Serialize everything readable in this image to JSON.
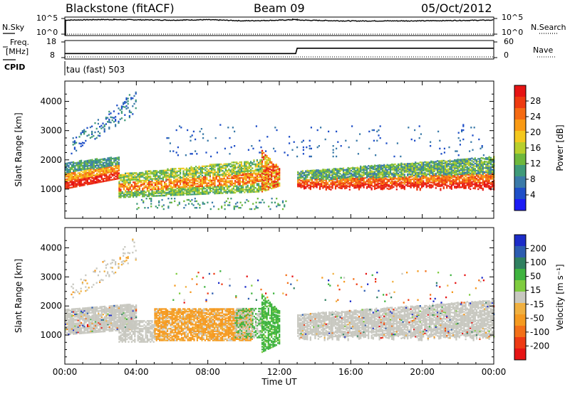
{
  "header": {
    "title": "Blackstone (fitACF)",
    "beam": "Beam 09",
    "date": "05/Oct/2012"
  },
  "left_labels": {
    "nsky": "N.Sky",
    "nsky_hi": "10^5",
    "nsky_lo": "10^0",
    "freq_line1": "Freq.",
    "freq_line2": "[MHz]",
    "freq_hi": "18",
    "freq_lo": "8",
    "cpid": "CPID",
    "cpid_value": "tau (fast) 503"
  },
  "right_labels": {
    "nsearch": "N.Search",
    "nsearch_hi": "10^5",
    "nsearch_lo": "10^0",
    "nave": "Nave",
    "nave_hi": "60",
    "nave_lo": "0"
  },
  "chart_data": [
    {
      "type": "line",
      "panel": "noise",
      "series": [
        {
          "name": "N.Sky",
          "x": [
            "00:00",
            "02:00",
            "04:00",
            "06:00",
            "08:00",
            "10:00",
            "12:00",
            "12:55",
            "13:05",
            "16:00",
            "20:00",
            "24:00"
          ],
          "values": [
            30000,
            45000,
            38000,
            30000,
            40000,
            18000,
            28000,
            45000,
            30000,
            16000,
            18000,
            30000
          ]
        },
        {
          "name": "N.Search",
          "style": "dotted",
          "x": [
            "00:00",
            "24:00"
          ],
          "values": [
            1,
            1
          ]
        }
      ],
      "yscale": "log",
      "ylim": [
        1,
        100000
      ]
    },
    {
      "type": "line",
      "panel": "frequency",
      "series": [
        {
          "name": "Freq.",
          "x": [
            "00:00",
            "12:55",
            "13:00",
            "24:00"
          ],
          "values": [
            10.6,
            10.6,
            14.0,
            14.0
          ]
        },
        {
          "name": "Nave",
          "style": "dotted",
          "x": [
            "00:00",
            "12:55",
            "13:00",
            "24:00"
          ],
          "values": [
            0,
            0,
            0,
            0
          ]
        }
      ]
    },
    {
      "type": "heatmap",
      "panel": "power",
      "ylabel": "Slant Range [km]",
      "ylim": [
        0,
        4500
      ],
      "yticks": [
        1000,
        2000,
        3000,
        4000
      ],
      "colorbar": {
        "label": "Power [dB]",
        "ticks": [
          4,
          8,
          12,
          16,
          20,
          24,
          28
        ],
        "colors": [
          "#1c1cf5",
          "#1f4fc8",
          "#3a7aa8",
          "#3f9a79",
          "#6eb83c",
          "#b8cf2c",
          "#f4c81e",
          "#f99a14",
          "#f56a12",
          "#ee3a10",
          "#e61414"
        ]
      },
      "features": [
        {
          "x0": "00:00",
          "x1": "03:00",
          "r0": 1000,
          "r1": 1900,
          "level": "high"
        },
        {
          "x0": "03:00",
          "x1": "11:00",
          "r0": 700,
          "r1": 2000,
          "level": "mixed"
        },
        {
          "x0": "11:00",
          "x1": "12:00",
          "r0": 900,
          "r1": 2300,
          "level": "high"
        },
        {
          "x0": "13:00",
          "x1": "24:00",
          "r0": 900,
          "r1": 2200,
          "level": "high"
        },
        {
          "x0": "00:00",
          "x1": "04:00",
          "r0": 2300,
          "r1": 4500,
          "level": "low"
        }
      ]
    },
    {
      "type": "heatmap",
      "panel": "velocity",
      "ylabel": "Slant Range [km]",
      "xlabel": "Time UT",
      "ylim": [
        0,
        4500
      ],
      "yticks": [
        1000,
        2000,
        3000,
        4000
      ],
      "xticks": [
        "00:00",
        "04:00",
        "08:00",
        "12:00",
        "16:00",
        "20:00",
        "00:00"
      ],
      "colorbar": {
        "label": "Velocity [m s⁻¹]",
        "ticks": [
          200,
          100,
          50,
          15,
          -15,
          -50,
          -100,
          -200
        ],
        "colors": [
          "#1c2cc8",
          "#2c5cb0",
          "#2f8060",
          "#3fb33f",
          "#7fcc3f",
          "#c8c8c0",
          "#f0b040",
          "#f59a20",
          "#f37018",
          "#ee3a14",
          "#e61414"
        ]
      },
      "features": [
        {
          "x0": "00:00",
          "x1": "04:00",
          "r0": 900,
          "r1": 2000,
          "level": "grey"
        },
        {
          "x0": "04:00",
          "x1": "10:30",
          "r0": 700,
          "r1": 2000,
          "level": "orange"
        },
        {
          "x0": "11:00",
          "x1": "12:00",
          "r0": 300,
          "r1": 2400,
          "level": "green"
        },
        {
          "x0": "13:00",
          "x1": "24:00",
          "r0": 800,
          "r1": 2300,
          "level": "grey"
        }
      ]
    }
  ]
}
